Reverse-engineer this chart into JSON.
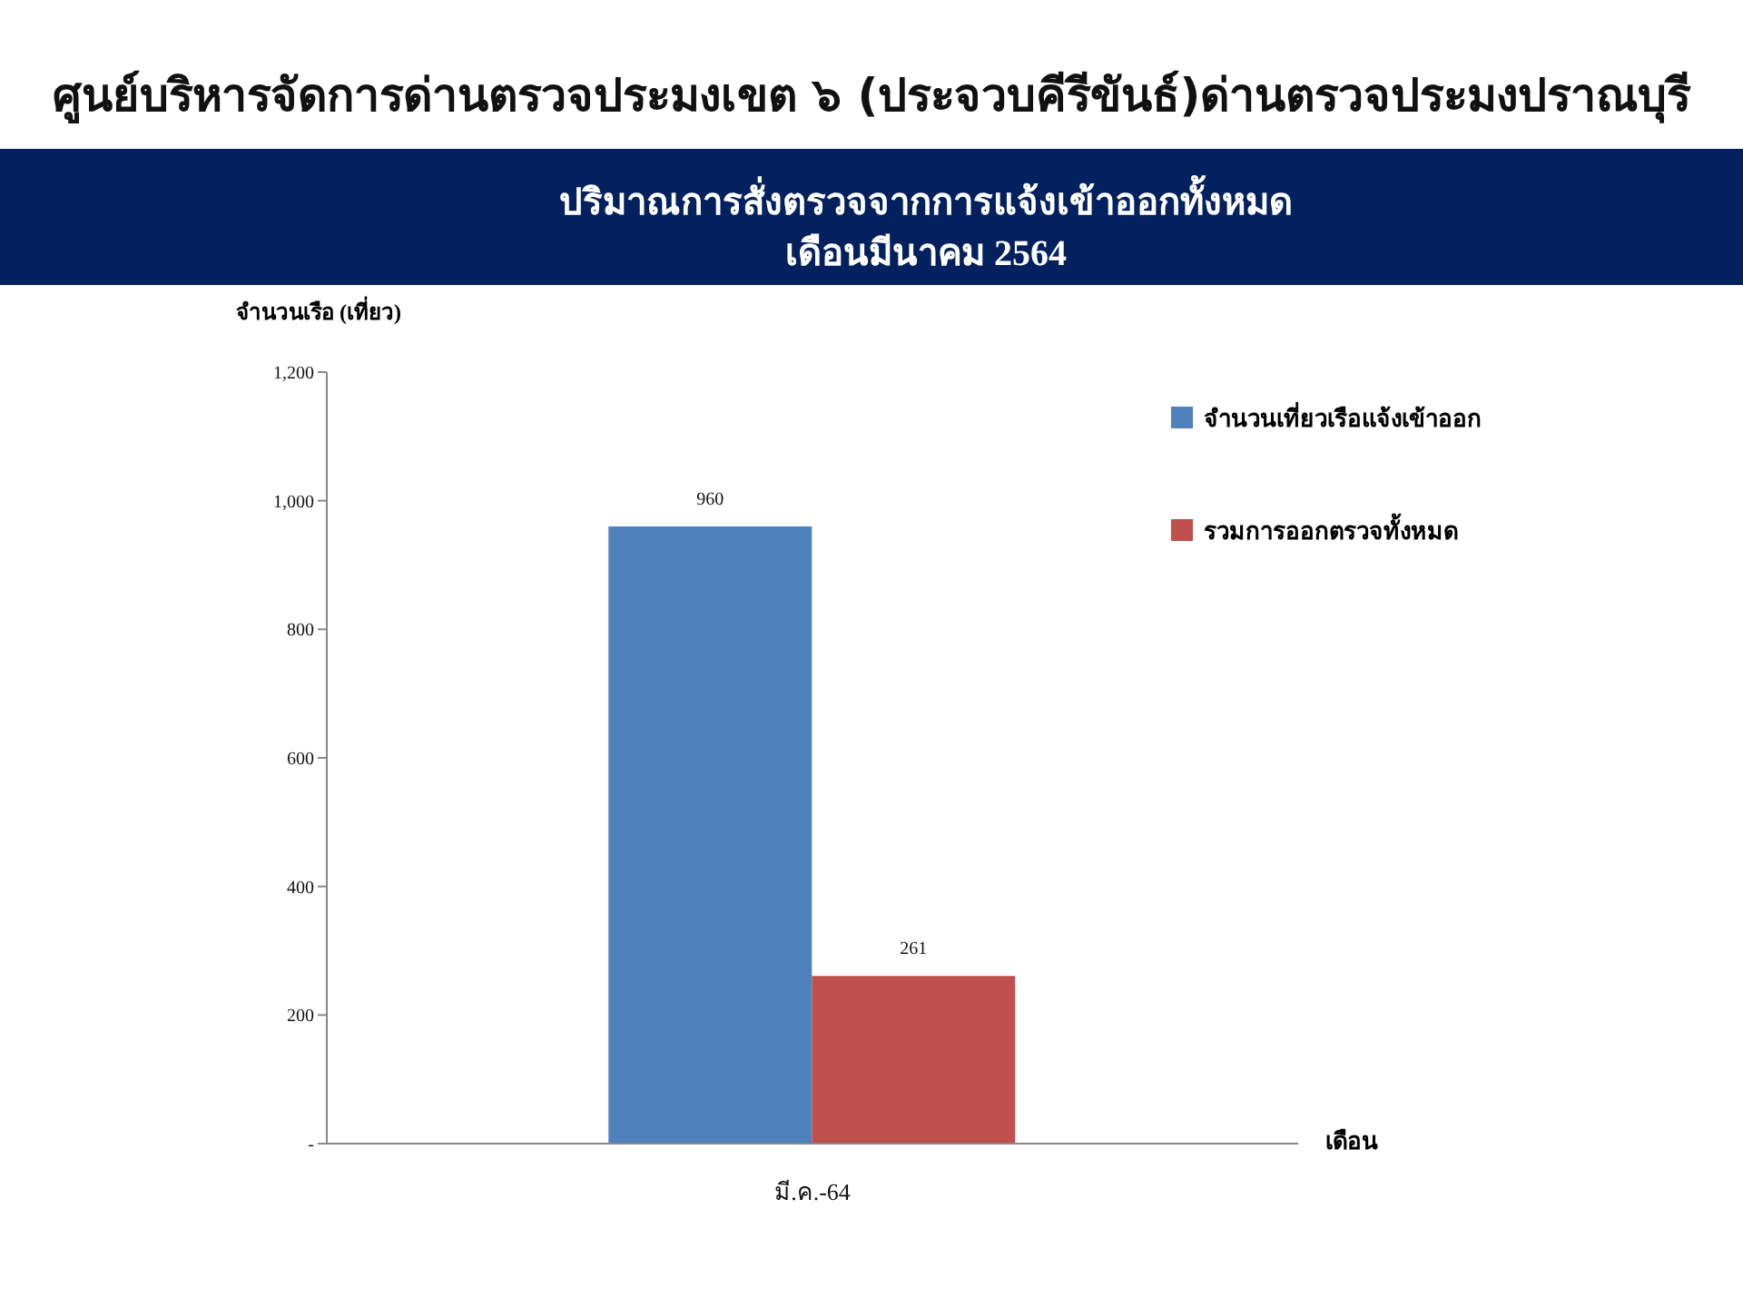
{
  "chart_data": {
    "type": "bar",
    "title": "ศูนย์บริหารจัดการด่านตรวจประมงเขต  ๖ (ประจวบคีรีขันธ์)ด่านตรวจประมงปราณบุรี",
    "subtitle": "ปริมาณการสั่งตรวจจากการแจ้งเข้าออกทั้งหมด\nเดือนมีนาคม 2564",
    "ylabel": "จำนวนเรือ (เที่ยว)",
    "xlabel": "เดือน",
    "categories": [
      "มี.ค.-64"
    ],
    "series": [
      {
        "name": "จำนวนเที่ยวเรือแจ้งเข้าออก",
        "color": "#4f81bd",
        "values": [
          960
        ]
      },
      {
        "name": "รวมการออกตรวจทั้งหมด",
        "color": "#c0504d",
        "values": [
          261
        ]
      }
    ],
    "ylim": [
      0,
      1200
    ],
    "yticks": [
      {
        "value": 0,
        "label": "-"
      },
      200,
      400,
      600,
      800,
      {
        "value": 1000,
        "label": "1,000"
      },
      {
        "value": 1200,
        "label": "1,200"
      }
    ],
    "data_labels": true,
    "grid": false,
    "legend": "right"
  }
}
